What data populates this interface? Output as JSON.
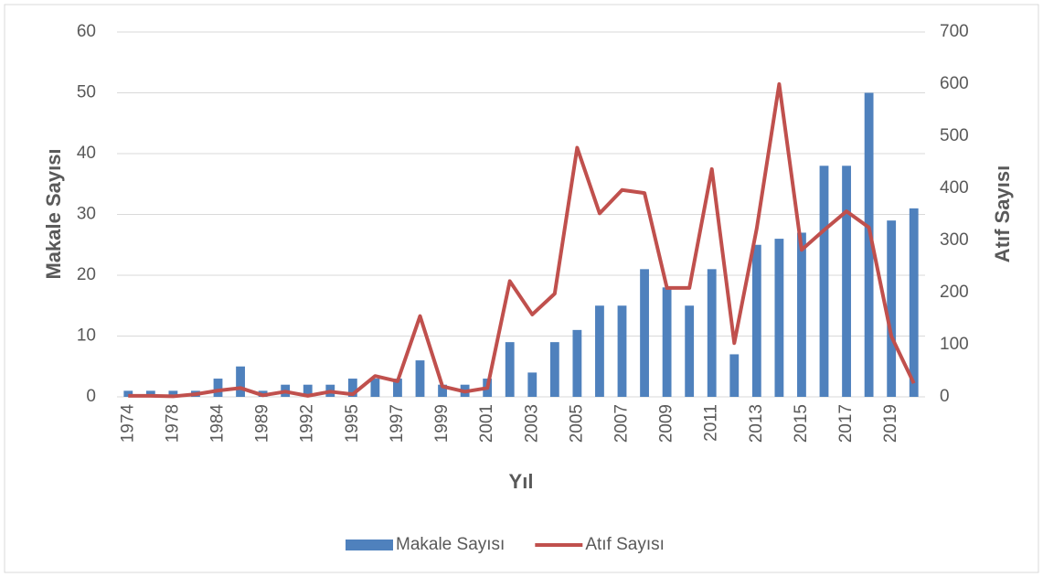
{
  "chart_data": {
    "type": "bar",
    "x_label": "Yıl",
    "y_label": "Makale Sayısı",
    "y2_label": "Atıf Sayısı",
    "categories": [
      "1974",
      null,
      "1978",
      null,
      "1984",
      null,
      "1989",
      null,
      "1992",
      null,
      "1995",
      null,
      "1997",
      null,
      "1999",
      null,
      "2001",
      null,
      "2003",
      null,
      "2005",
      null,
      "2007",
      null,
      "2009",
      null,
      "2011",
      null,
      "2013",
      null,
      "2015",
      null,
      "2017",
      null,
      "2019",
      null
    ],
    "series": [
      {
        "name": "Makale Sayısı",
        "type": "bar",
        "color": "#4f81bd",
        "values": [
          1,
          1,
          1,
          1,
          3,
          5,
          1,
          2,
          2,
          2,
          3,
          3,
          3,
          6,
          2,
          2,
          3,
          9,
          4,
          9,
          11,
          15,
          15,
          21,
          18,
          15,
          21,
          7,
          25,
          26,
          27,
          38,
          38,
          50,
          29,
          31
        ]
      },
      {
        "name": "Atıf Sayısı",
        "type": "line",
        "axis": "y2",
        "color": "#c0504d",
        "values": [
          2,
          2,
          1,
          5,
          12,
          17,
          3,
          10,
          2,
          10,
          5,
          40,
          30,
          155,
          20,
          10,
          17,
          222,
          158,
          198,
          478,
          352,
          397,
          391,
          209,
          209,
          437,
          103,
          323,
          600,
          282,
          320,
          356,
          325,
          116,
          26
        ]
      }
    ],
    "ylim": [
      0,
      60
    ],
    "yticks": [
      0,
      10,
      20,
      30,
      40,
      50,
      60
    ],
    "y2lim": [
      0,
      700
    ],
    "y2ticks": [
      0,
      100,
      200,
      300,
      400,
      500,
      600,
      700
    ],
    "grid": true,
    "legend": "bottom"
  }
}
